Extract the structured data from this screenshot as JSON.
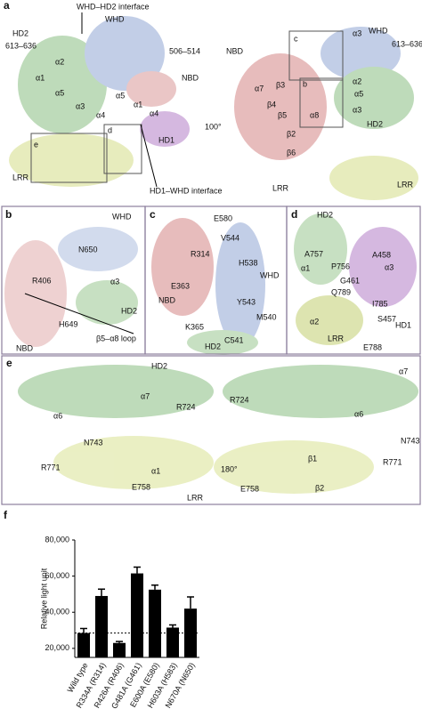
{
  "panels": {
    "a": {
      "letter": "a",
      "labels": [
        "WHD–HD2 interface",
        "HD2",
        "WHD",
        "506–514",
        "613–636",
        "α2",
        "α1",
        "α5",
        "α3",
        "α4",
        "α5",
        "α1",
        "NBD",
        "e",
        "d",
        "LRR",
        "α4",
        "HD1",
        "100°",
        "HD1–WHD interface",
        "NBD",
        "c",
        "α3",
        "WHD",
        "613–636",
        "b",
        "α2",
        "α7",
        "β3",
        "α5",
        "β4",
        "β5",
        "α8",
        "HD2",
        "β2",
        "α3",
        "β6",
        "LRR",
        "LRR"
      ]
    },
    "b": {
      "letter": "b",
      "labels": [
        "WHD",
        "N650",
        "R406",
        "α3",
        "H649",
        "HD2",
        "β5–α8 loop",
        "NBD"
      ]
    },
    "c": {
      "letter": "c",
      "labels": [
        "E580",
        "V544",
        "R314",
        "H538",
        "WHD",
        "E363",
        "NBD",
        "Y543",
        "M540",
        "K365",
        "C541",
        "HD2"
      ]
    },
    "d": {
      "letter": "d",
      "labels": [
        "HD2",
        "A757",
        "A458",
        "α1",
        "P756",
        "G461",
        "α3",
        "Q789",
        "I785",
        "S457",
        "HD1",
        "α2",
        "LRR",
        "E788"
      ]
    },
    "e": {
      "letter": "e",
      "labels": [
        "HD2",
        "α7",
        "α6",
        "α6",
        "α7",
        "R724",
        "R724",
        "N743",
        "N743",
        "R771",
        "R771",
        "E758",
        "E758",
        "180°",
        "α1",
        "β1",
        "LRR",
        "β2"
      ]
    },
    "f": {
      "letter": "f"
    }
  },
  "chart_data": {
    "type": "bar",
    "y_label": "Relative light unit",
    "categories": [
      "Wild type",
      "R334A (R314)",
      "R426A (R406)",
      "G481A (G461)",
      "E600A (E580)",
      "H603A (H583)",
      "N670A (N650)"
    ],
    "values": [
      28500,
      49000,
      23000,
      61500,
      52500,
      31500,
      42000
    ],
    "errors": [
      2500,
      3800,
      800,
      3500,
      2500,
      1500,
      6500
    ],
    "color": "#000000",
    "ylim": [
      15000,
      80000
    ],
    "yticks": [
      {
        "value": 20000,
        "label": "20,000"
      },
      {
        "value": 40000,
        "label": "40,000"
      },
      {
        "value": 60000,
        "label": "60,000"
      },
      {
        "value": 80000,
        "label": "80,000"
      }
    ],
    "reference_line": true,
    "grid": false
  }
}
